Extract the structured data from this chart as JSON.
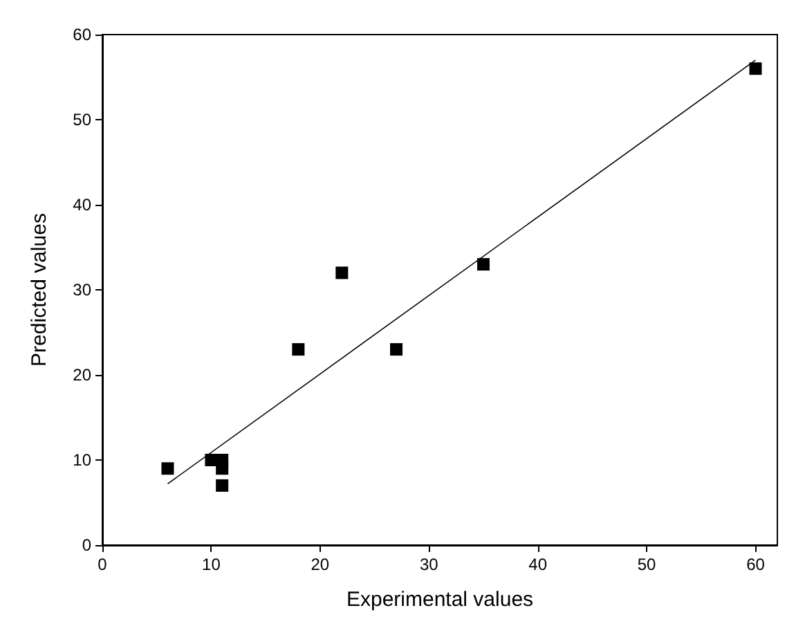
{
  "chart_data": {
    "type": "scatter",
    "xlabel": "Experimental values",
    "ylabel": "Predicted values",
    "xlim": [
      0,
      62
    ],
    "ylim": [
      0,
      60
    ],
    "xticks": [
      0,
      10,
      20,
      30,
      40,
      50,
      60
    ],
    "yticks": [
      0,
      10,
      20,
      30,
      40,
      50,
      60
    ],
    "grid": false,
    "marker": "square",
    "series": [
      {
        "color": "#000000",
        "x": [
          6,
          10,
          11,
          11,
          11,
          18,
          22,
          27,
          35,
          60
        ],
        "values": [
          9,
          10,
          10,
          9,
          7,
          23,
          32,
          23,
          33,
          56
        ]
      },
      {
        "type": "line",
        "color": "#000000",
        "marker": "none",
        "line_style": "solid",
        "x": [
          6,
          60
        ],
        "values": [
          7.2,
          57
        ]
      }
    ]
  }
}
